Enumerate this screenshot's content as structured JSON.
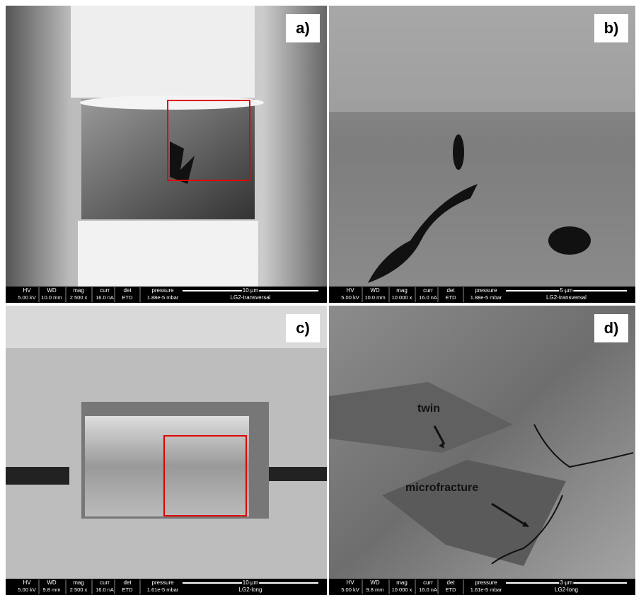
{
  "panels": [
    {
      "label": "a)",
      "info": {
        "headers": [
          "HV",
          "WD",
          "mag",
          "curr",
          "det",
          "pressure"
        ],
        "values": [
          "5.00 kV",
          "10.0 mm",
          "2 500 x",
          "16.0 nA",
          "ETD",
          "1.88e-5 mbar"
        ],
        "scale": "10 µm",
        "sample": "LG2-transversal"
      }
    },
    {
      "label": "b)",
      "info": {
        "headers": [
          "HV",
          "WD",
          "mag",
          "curr",
          "det",
          "pressure"
        ],
        "values": [
          "5.00 kV",
          "10.0 mm",
          "10 000 x",
          "16.0 nA",
          "ETD",
          "1.88e-5 mbar"
        ],
        "scale": "5 µm",
        "sample": "LG2-transversal"
      }
    },
    {
      "label": "c)",
      "info": {
        "headers": [
          "HV",
          "WD",
          "mag",
          "curr",
          "det",
          "pressure"
        ],
        "values": [
          "5.00 kV",
          "9.8 mm",
          "2 500 x",
          "16.0 nA",
          "ETD",
          "1.61e-5 mbar"
        ],
        "scale": "10 µm",
        "sample": "LG2-long"
      }
    },
    {
      "label": "d)",
      "info": {
        "headers": [
          "HV",
          "WD",
          "mag",
          "curr",
          "det",
          "pressure"
        ],
        "values": [
          "5.00 kV",
          "9.8 mm",
          "10 000 x",
          "16.0 nA",
          "ETD",
          "1.61e-5 mbar"
        ],
        "scale": "3 µm",
        "sample": "LG2-long"
      }
    }
  ],
  "annotations": [
    {
      "text": "twin"
    },
    {
      "text": "microfracture"
    }
  ]
}
